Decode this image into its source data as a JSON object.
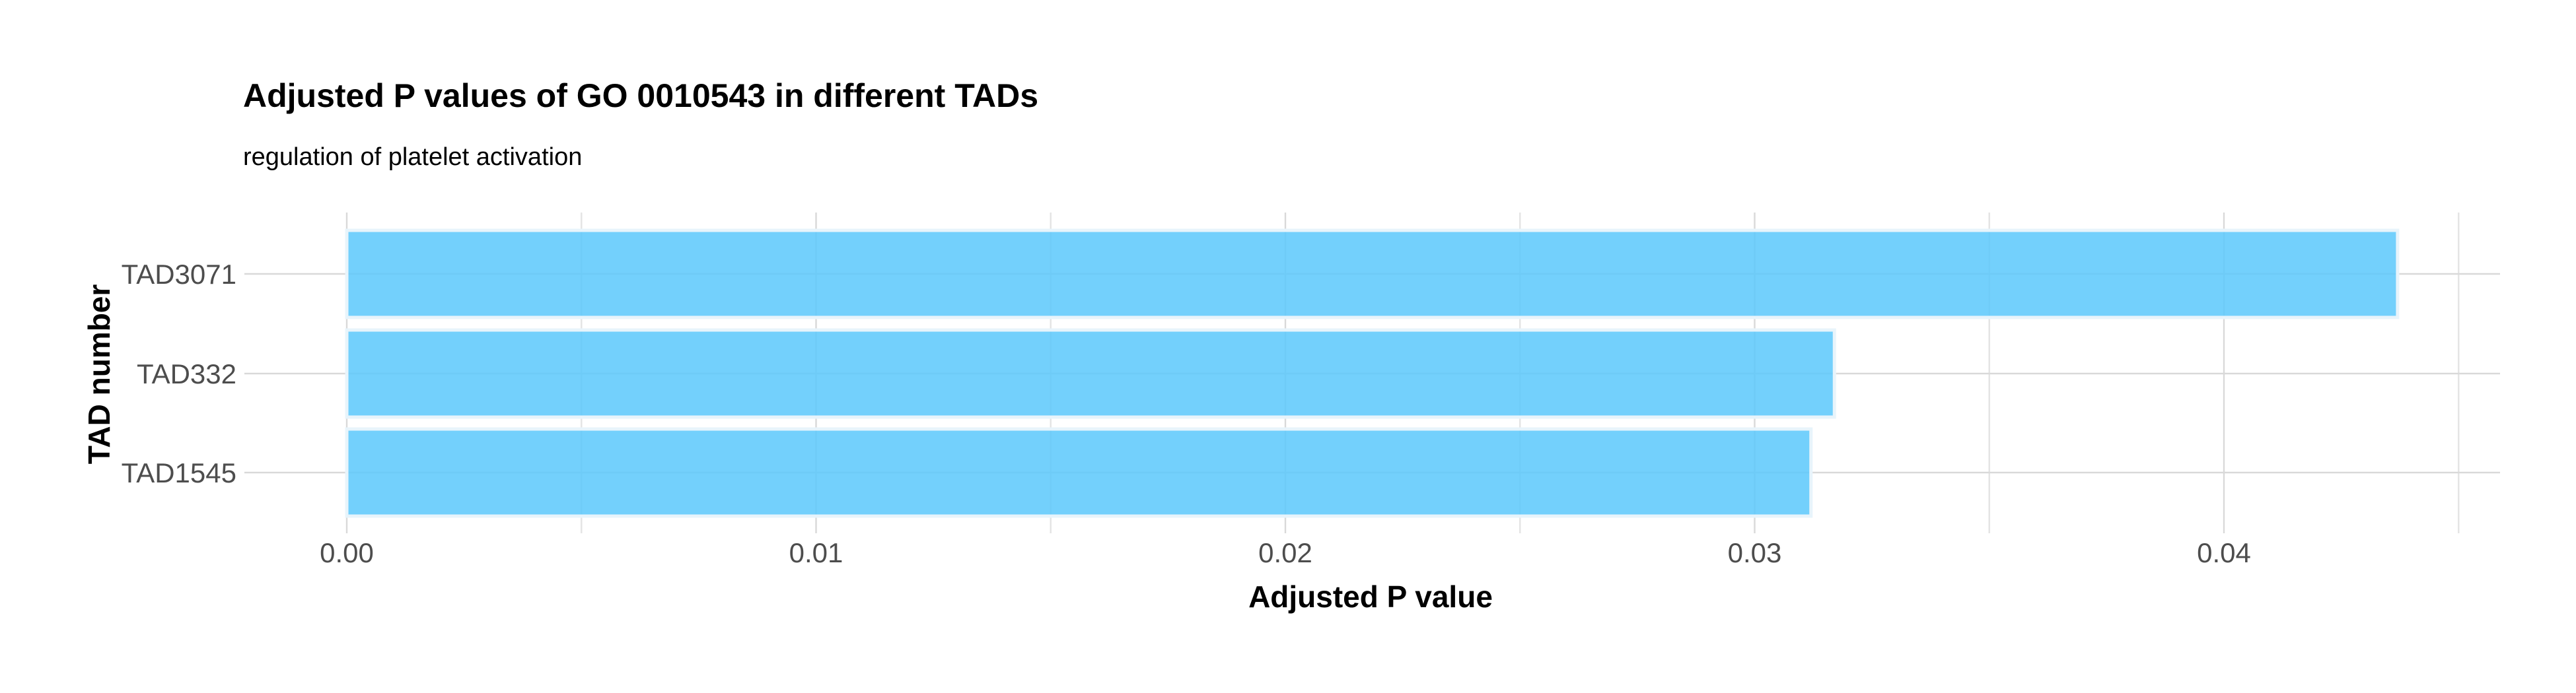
{
  "chart_data": {
    "type": "bar",
    "orientation": "horizontal",
    "title": "Adjusted P values of GO 0010543 in different TADs",
    "subtitle": "regulation of platelet activation",
    "xlabel": "Adjusted P value",
    "ylabel": "TAD number",
    "categories": [
      "TAD3071",
      "TAD332",
      "TAD1545"
    ],
    "values": [
      0.0437,
      0.0317,
      0.0312
    ],
    "xlim": [
      0,
      0.046
    ],
    "xticks": [
      0.0,
      0.01,
      0.02,
      0.03,
      0.04
    ],
    "xtick_labels": [
      "0.00",
      "0.01",
      "0.02",
      "0.03",
      "0.04"
    ],
    "bar_color": "#5bc8fb",
    "grid": true,
    "legend": "none"
  }
}
